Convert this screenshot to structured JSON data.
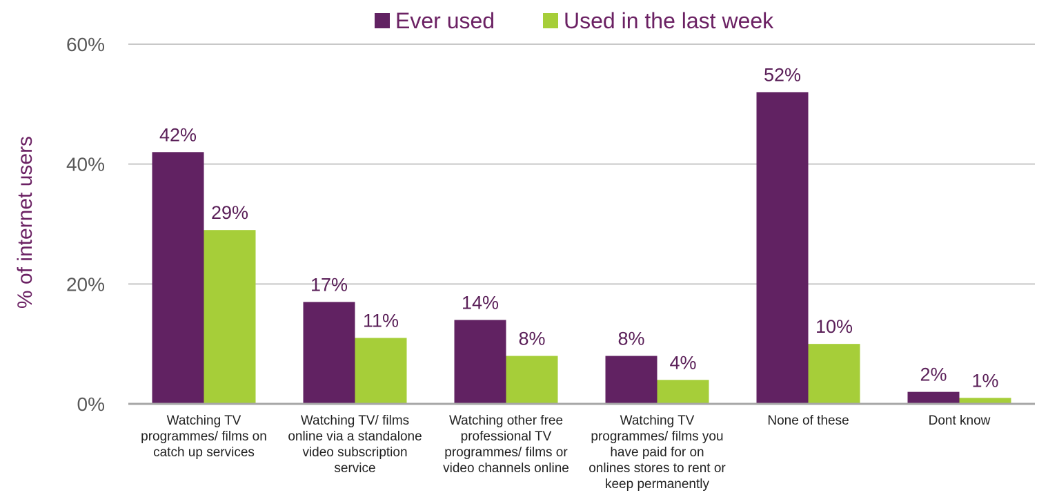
{
  "chart_data": {
    "type": "bar",
    "ylabel": "% of internet users",
    "ylim": [
      0,
      60
    ],
    "yticks": [
      0,
      20,
      40,
      60
    ],
    "ytick_labels": [
      "0%",
      "20%",
      "40%",
      "60%"
    ],
    "grid": true,
    "legend_position": "top",
    "categories": [
      [
        "Watching TV",
        "programmes/ films on",
        "catch up services"
      ],
      [
        "Watching TV/ films",
        "online via a standalone",
        "video subscription",
        "service"
      ],
      [
        "Watching other free",
        "professional TV",
        "programmes/ films or",
        "video channels online"
      ],
      [
        "Watching TV",
        "programmes/ films you",
        "have paid for on",
        "onlines stores to rent or",
        "keep permanently"
      ],
      [
        "None of these"
      ],
      [
        "Dont know"
      ]
    ],
    "series": [
      {
        "name": "Ever used",
        "color": "#612262",
        "values": [
          42,
          17,
          14,
          8,
          52,
          2
        ],
        "labels": [
          "42%",
          "17%",
          "14%",
          "8%",
          "52%",
          "2%"
        ]
      },
      {
        "name": "Used in the last week",
        "color": "#a6ce39",
        "values": [
          29,
          11,
          8,
          4,
          10,
          1
        ],
        "labels": [
          "29%",
          "11%",
          "8%",
          "4%",
          "10%",
          "1%"
        ]
      }
    ]
  }
}
